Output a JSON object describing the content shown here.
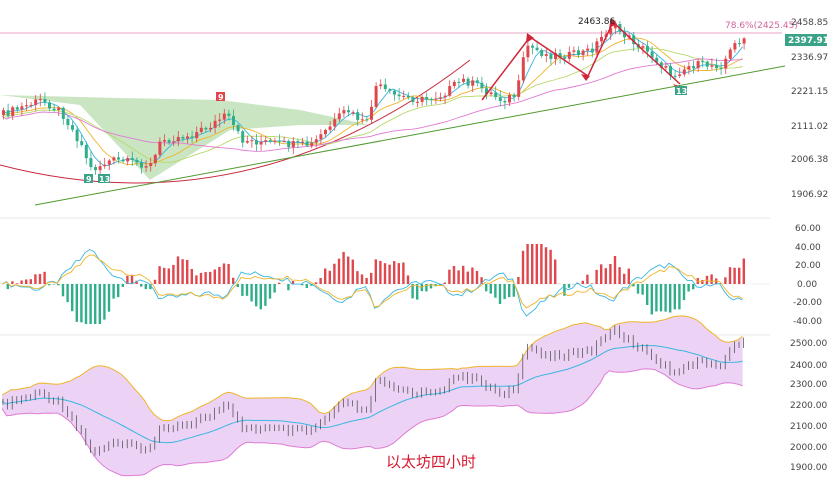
{
  "chart_data": [
    {
      "type": "candlestick",
      "panel": "price",
      "y_axis_ticks": [
        "2458.85",
        "2336.97",
        "2221.15",
        "2111.02",
        "2006.38",
        "1906.92"
      ],
      "ylim": [
        1880,
        2480
      ],
      "current_price": "2397.91",
      "fib_label": "78.6%(2425.45)",
      "high_label": "2463.86",
      "td_counts": [
        "9",
        "13",
        "9",
        "13"
      ],
      "colors": {
        "up": "#e0474c",
        "down": "#2fae8a",
        "ma1": "#3ab6e0",
        "ma2": "#f0b429",
        "ma3": "#b9d96a",
        "ma4": "#e07bd4",
        "trend": "#4f9a2e",
        "arc": "#c8283e",
        "zigzag": "#d0263a"
      }
    },
    {
      "type": "macd",
      "panel": "oscillator",
      "y_axis_ticks": [
        "60.00",
        "40.00",
        "20.00",
        "0.00",
        "-20.00",
        "-40.00"
      ],
      "ylim": [
        -45,
        65
      ],
      "colors": {
        "positive": "#e0474c",
        "negative": "#2fae8a",
        "dif": "#3ab6e0",
        "dea": "#f0b429"
      }
    },
    {
      "type": "bollinger",
      "panel": "bands",
      "y_axis_ticks": [
        "2500.00",
        "2400.00",
        "2300.00",
        "2200.00",
        "2100.00",
        "2000.00",
        "1900.00"
      ],
      "ylim": [
        1890,
        2510
      ],
      "colors": {
        "band_fill": "#ecd3f6",
        "upper": "#f0b429",
        "lower": "#e07bd4",
        "mid": "#3ab6e0"
      }
    }
  ],
  "caption": "以太坊四小时"
}
